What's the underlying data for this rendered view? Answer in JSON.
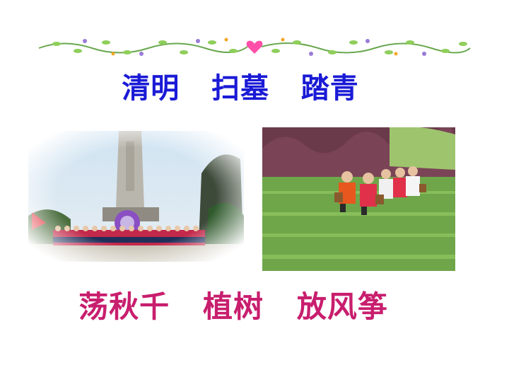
{
  "slide": {
    "title_top": "清明   扫墓   踏青",
    "title_bottom": "荡秋千   植树   放风筝"
  },
  "colors": {
    "top_title": "#1a1ad6",
    "bottom_title": "#c81e6e",
    "vine_green": "#6aa84f",
    "heart": "#ff4fa8"
  },
  "images": {
    "left": "monument-photo-with-children",
    "right": "children-in-green-field-photo"
  }
}
